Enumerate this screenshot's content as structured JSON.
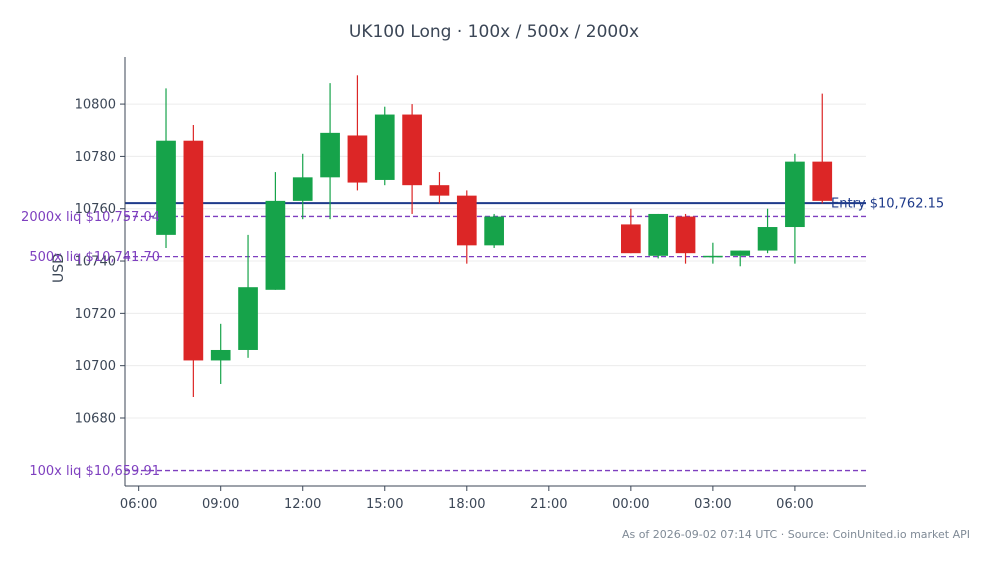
{
  "chart_data": {
    "type": "candlestick",
    "title": "UK100 Long · 100x / 500x / 2000x",
    "xlabel": "",
    "ylabel": "USD",
    "ylim": [
      10654,
      10818
    ],
    "y_ticks": [
      10680,
      10700,
      10720,
      10740,
      10760,
      10780,
      10800
    ],
    "y_tick_labels": [
      "10680",
      "10700",
      "10720",
      "10740",
      "10760",
      "10780",
      "10800"
    ],
    "x_tick_hours": [
      6,
      9,
      12,
      15,
      18,
      21,
      24,
      27,
      30
    ],
    "x_tick_labels": [
      "06:00",
      "09:00",
      "12:00",
      "15:00",
      "18:00",
      "21:00",
      "00:00",
      "03:00",
      "06:00"
    ],
    "xlim_hours": [
      5.5,
      32.6
    ],
    "grid": "horizontal",
    "up_color": "#16a34a",
    "down_color": "#dc2626",
    "candles": [
      {
        "t": 7,
        "open": 10750,
        "high": 10806,
        "low": 10745,
        "close": 10786
      },
      {
        "t": 8,
        "open": 10786,
        "high": 10792,
        "low": 10688,
        "close": 10702
      },
      {
        "t": 9,
        "open": 10702,
        "high": 10716,
        "low": 10693,
        "close": 10706
      },
      {
        "t": 10,
        "open": 10706,
        "high": 10750,
        "low": 10703,
        "close": 10730
      },
      {
        "t": 11,
        "open": 10729,
        "high": 10774,
        "low": 10729,
        "close": 10763
      },
      {
        "t": 12,
        "open": 10763,
        "high": 10781,
        "low": 10756,
        "close": 10772
      },
      {
        "t": 13,
        "open": 10772,
        "high": 10808,
        "low": 10756,
        "close": 10789
      },
      {
        "t": 14,
        "open": 10788,
        "high": 10811,
        "low": 10767,
        "close": 10770
      },
      {
        "t": 15,
        "open": 10771,
        "high": 10799,
        "low": 10769,
        "close": 10796
      },
      {
        "t": 16,
        "open": 10796,
        "high": 10800,
        "low": 10758,
        "close": 10769
      },
      {
        "t": 17,
        "open": 10769,
        "high": 10774,
        "low": 10762,
        "close": 10765
      },
      {
        "t": 18,
        "open": 10765,
        "high": 10767,
        "low": 10739,
        "close": 10746
      },
      {
        "t": 19,
        "open": 10746,
        "high": 10758,
        "low": 10745,
        "close": 10757
      },
      {
        "t": 24,
        "open": 10754,
        "high": 10760,
        "low": 10743,
        "close": 10743
      },
      {
        "t": 25,
        "open": 10742,
        "high": 10758,
        "low": 10741,
        "close": 10758
      },
      {
        "t": 26,
        "open": 10757,
        "high": 10758,
        "low": 10739,
        "close": 10743
      },
      {
        "t": 27,
        "open": 10742,
        "high": 10747,
        "low": 10739,
        "close": 10742
      },
      {
        "t": 28,
        "open": 10742,
        "high": 10744,
        "low": 10738,
        "close": 10744
      },
      {
        "t": 29,
        "open": 10744,
        "high": 10760,
        "low": 10743,
        "close": 10753
      },
      {
        "t": 30,
        "open": 10753,
        "high": 10781,
        "low": 10739,
        "close": 10778
      },
      {
        "t": 31,
        "open": 10778,
        "high": 10804,
        "low": 10762,
        "close": 10763
      }
    ],
    "reference_lines": [
      {
        "label": "Entry $10,762.15",
        "value": 10762.15,
        "color": "#1e3a8a",
        "style": "solid"
      },
      {
        "label": "2000x liq $10,757.04",
        "value": 10757.04,
        "color": "#7e3fbf",
        "style": "dashed"
      },
      {
        "label": "500x liq $10,741.70",
        "value": 10741.7,
        "color": "#7e3fbf",
        "style": "dashed"
      },
      {
        "label": "100x liq $10,659.91",
        "value": 10659.91,
        "color": "#7e3fbf",
        "style": "dashed"
      }
    ]
  },
  "footer": {
    "text": "As of 2026-09-02 07:14 UTC · Source: CoinUnited.io market API"
  }
}
